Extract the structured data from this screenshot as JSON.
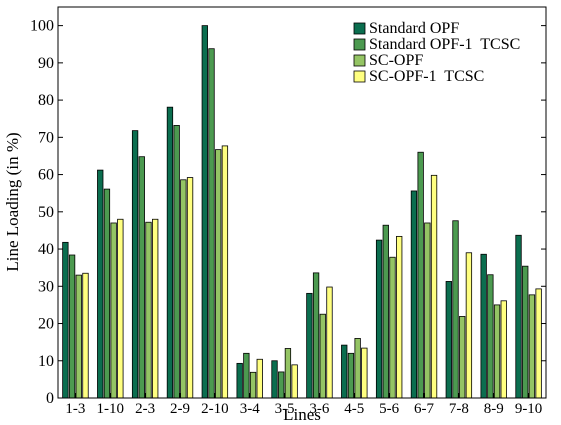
{
  "chart_data": {
    "type": "bar",
    "title": "",
    "xlabel": "Lines",
    "ylabel": "Line Loading (in %)",
    "ylim": [
      0,
      105
    ],
    "yticks": [
      0,
      10,
      20,
      30,
      40,
      50,
      60,
      70,
      80,
      90,
      100
    ],
    "grid": false,
    "legend_position": "top-right",
    "categories": [
      "1-3",
      "1-10",
      "2-3",
      "2-9",
      "2-10",
      "3-4",
      "3-5",
      "3-6",
      "4-5",
      "5-6",
      "6-7",
      "7-8",
      "8-9",
      "9-10"
    ],
    "series": [
      {
        "name": "Standard OPF",
        "color": "#0b6e4f",
        "values": [
          41.8,
          61.2,
          71.8,
          78.1,
          100.0,
          9.3,
          10.0,
          28.1,
          14.2,
          42.4,
          55.6,
          31.3,
          38.6,
          43.7
        ]
      },
      {
        "name": "Standard OPF-1  TCSC",
        "color": "#4c9a50",
        "values": [
          38.4,
          56.1,
          64.8,
          73.2,
          93.8,
          12.0,
          7.0,
          33.6,
          12.0,
          46.4,
          66.0,
          47.6,
          33.1,
          35.4
        ]
      },
      {
        "name": "SC-OPF",
        "color": "#94c464",
        "values": [
          33.0,
          47.0,
          47.2,
          58.6,
          66.7,
          6.9,
          13.3,
          22.5,
          16.0,
          37.8,
          47.0,
          21.9,
          25.0,
          27.7
        ]
      },
      {
        "name": "SC-OPF-1  TCSC",
        "color": "#ffff80",
        "values": [
          33.5,
          48.0,
          48.0,
          59.2,
          67.7,
          10.4,
          8.9,
          29.8,
          13.4,
          43.4,
          59.8,
          39.0,
          26.1,
          29.3
        ]
      }
    ]
  }
}
